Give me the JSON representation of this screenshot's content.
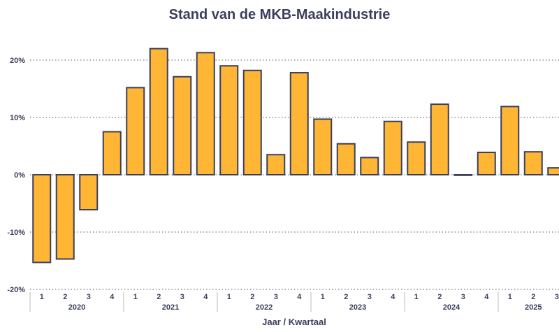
{
  "chart_data": {
    "type": "bar",
    "title": "Stand van de MKB-Maakindustrie",
    "xlabel": "Jaar / Kwartaal",
    "ylabel": "",
    "ylim": [
      -20,
      20
    ],
    "yticks": [
      "-20%",
      "-10%",
      "0%",
      "10%",
      "20%"
    ],
    "grid": true,
    "bar_color": "#ffb634",
    "bar_edge_color": "#3b3f5c",
    "years": [
      {
        "label": "2020",
        "quarters": [
          "1",
          "2",
          "3",
          "4"
        ]
      },
      {
        "label": "2021",
        "quarters": [
          "1",
          "2",
          "3",
          "4"
        ]
      },
      {
        "label": "2022",
        "quarters": [
          "1",
          "2",
          "3",
          "4"
        ]
      },
      {
        "label": "2023",
        "quarters": [
          "1",
          "2",
          "3",
          "4"
        ]
      },
      {
        "label": "2024",
        "quarters": [
          "1",
          "2",
          "3",
          "4"
        ]
      },
      {
        "label": "2025",
        "quarters": [
          "1",
          "2",
          "3"
        ]
      }
    ],
    "values": [
      -15.3,
      -14.7,
      -6.1,
      7.5,
      15.2,
      22.0,
      17.1,
      21.3,
      19.0,
      18.2,
      3.5,
      17.8,
      9.7,
      5.4,
      3.0,
      9.3,
      5.7,
      12.3,
      -0.1,
      3.9,
      11.9,
      4.0,
      1.2
    ]
  }
}
